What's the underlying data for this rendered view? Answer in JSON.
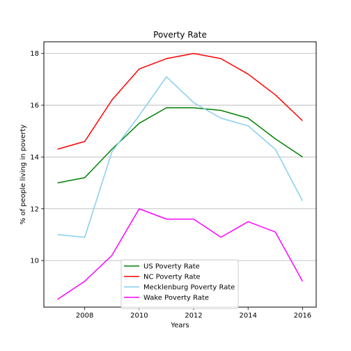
{
  "chart_data": {
    "type": "line",
    "title": "Poverty Rate",
    "xlabel": "Years",
    "ylabel": "% of people living in poverty",
    "x": [
      2007,
      2008,
      2009,
      2010,
      2011,
      2012,
      2013,
      2014,
      2015,
      2016
    ],
    "xlim": [
      2006.5,
      2016.5
    ],
    "ylim": [
      8.2,
      18.45
    ],
    "xticks": [
      2008,
      2010,
      2012,
      2014,
      2016
    ],
    "yticks": [
      10,
      12,
      14,
      16,
      18
    ],
    "grid": "horizontal",
    "legend_position": "lower center",
    "series": [
      {
        "name": "US Poverty Rate",
        "color": "#008000",
        "values": [
          13.0,
          13.2,
          14.3,
          15.3,
          15.9,
          15.9,
          15.8,
          15.5,
          14.7,
          14.0
        ]
      },
      {
        "name": "NC Poverty Rate",
        "color": "#ff0000",
        "values": [
          14.3,
          14.6,
          16.2,
          17.4,
          17.8,
          18.0,
          17.8,
          17.2,
          16.4,
          15.4
        ]
      },
      {
        "name": "Mecklenburg Poverty Rate",
        "color": "#87ceeb",
        "values": [
          11.0,
          10.9,
          14.2,
          15.6,
          17.1,
          16.1,
          15.5,
          15.2,
          14.3,
          12.3
        ]
      },
      {
        "name": "Wake Poverty Rate",
        "color": "#ff00ff",
        "values": [
          8.5,
          9.2,
          10.2,
          12.0,
          11.6,
          11.6,
          10.9,
          11.5,
          11.1,
          9.2
        ]
      }
    ]
  }
}
